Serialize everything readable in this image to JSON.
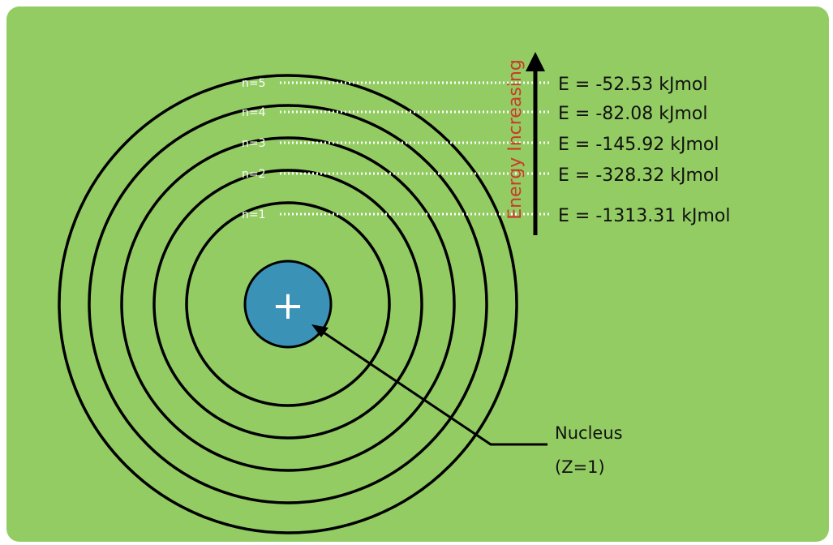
{
  "diagram": {
    "levels": [
      {
        "label": "n=1",
        "energy": "E = -1313.31 kJmol"
      },
      {
        "label": "n=2",
        "energy": "E = -328.32 kJmol"
      },
      {
        "label": "n=3",
        "energy": "E = -145.92 kJmol"
      },
      {
        "label": "n=4",
        "energy": "E = -82.08 kJmol"
      },
      {
        "label": "n=5",
        "energy": "E = -52.53 kJmol"
      }
    ],
    "axis_label": "Energy Increasing",
    "nucleus_symbol": "+",
    "nucleus_label_line1": "Nucleus",
    "nucleus_label_line2": "(Z=1)"
  },
  "colors": {
    "background": "#93cc63",
    "orbit": "#000000",
    "dotted_line": "#ffffff",
    "nucleus_fill": "#3a93b6",
    "axis_label": "#c83c2a",
    "text": "#111111"
  }
}
